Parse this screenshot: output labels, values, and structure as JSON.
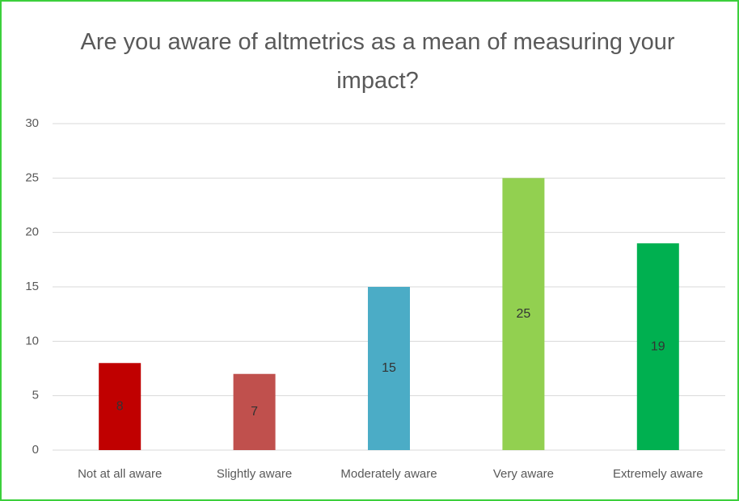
{
  "chart_data": {
    "type": "bar",
    "title": "Are you aware of altmetrics as a mean of measuring your impact?",
    "categories": [
      "Not at all aware",
      "Slightly aware",
      "Moderately aware",
      "Very aware",
      "Extremely aware"
    ],
    "values": [
      8,
      7,
      15,
      25,
      19
    ],
    "colors": [
      "#c00000",
      "#c0504d",
      "#4bacc6",
      "#92d050",
      "#00b050"
    ],
    "ylim": [
      0,
      30
    ],
    "yticks": [
      0,
      5,
      10,
      15,
      20,
      25,
      30
    ],
    "grid": true,
    "data_labels": true
  }
}
